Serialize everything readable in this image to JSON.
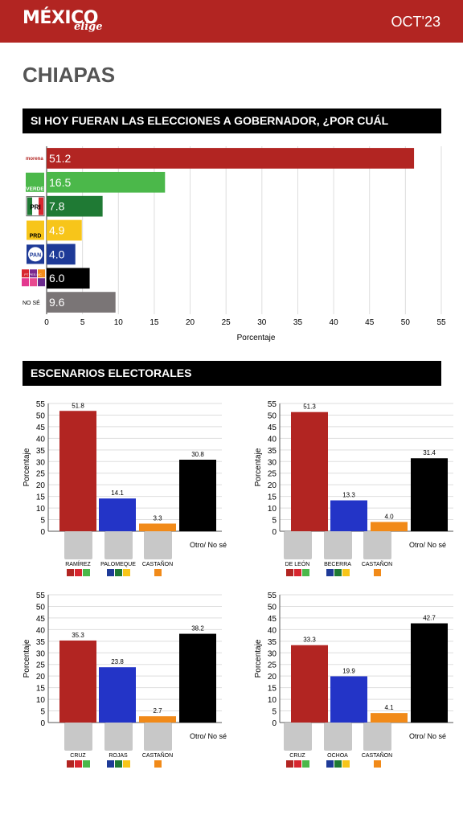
{
  "header": {
    "logo_main": "MÉXICO",
    "logo_sub": "elige",
    "date": "OCT'23"
  },
  "state_title": "CHIAPAS",
  "section1_title": "SI HOY FUERAN LAS ELECCIONES A GOBERNADOR, ¿POR CUÁL VOTARÍA?",
  "section2_title": "ESCENARIOS ELECTORALES",
  "colors": {
    "red": "#b22522",
    "green": "#4bb84a",
    "darkgreen": "#1f7a34",
    "yellow": "#f7c51a",
    "blue": "#1e3a97",
    "black": "#000000",
    "gray": "#7a7576",
    "orange": "#f18a19",
    "scenario_blue": "#2334c7"
  },
  "chart_data": [
    {
      "type": "bar",
      "orientation": "horizontal",
      "categories": [
        "morena",
        "VERDE",
        "PRI",
        "PRD",
        "PAN",
        "PT PES MC",
        "NO SÉ"
      ],
      "category_icons": [
        "morena-logo",
        "pvem-logo",
        "pri-logo",
        "prd-logo",
        "pan-logo",
        "other-parties-logo",
        ""
      ],
      "bar_colors": [
        "#b22522",
        "#4bb84a",
        "#1f7a34",
        "#f7c51a",
        "#1e3a97",
        "#000000",
        "#7a7576"
      ],
      "values": [
        51.2,
        16.5,
        7.8,
        4.9,
        4.0,
        6.0,
        9.6
      ],
      "value_labels": [
        "51.2",
        "16.5",
        "7.8",
        "4.9",
        "4.0",
        "6.0",
        "9.6"
      ],
      "xlabel": "Porcentaje",
      "xlim": [
        0,
        55
      ],
      "xticks": [
        0,
        5,
        10,
        15,
        20,
        25,
        30,
        35,
        40,
        45,
        50,
        55
      ],
      "grid": true
    },
    {
      "type": "bar",
      "categories": [
        "RAMÍREZ",
        "PALOMEQUE",
        "CASTAÑON",
        "Otro/ No sé"
      ],
      "values": [
        51.8,
        14.1,
        3.3,
        30.8
      ],
      "value_labels": [
        "51.8",
        "14.1",
        "3.3",
        "30.8"
      ],
      "bar_colors": [
        "#b22522",
        "#2334c7",
        "#f18a19",
        "#000000"
      ],
      "ylabel": "Porcentaje",
      "ylim": [
        0,
        55
      ],
      "yticks": [
        0,
        5,
        10,
        15,
        20,
        25,
        30,
        35,
        40,
        45,
        50,
        55
      ],
      "grid": true
    },
    {
      "type": "bar",
      "categories": [
        "DE LEÓN",
        "BECERRA",
        "CASTAÑON",
        "Otro/ No sé"
      ],
      "values": [
        51.3,
        13.3,
        4.0,
        31.4
      ],
      "value_labels": [
        "51.3",
        "13.3",
        "4.0",
        "31.4"
      ],
      "bar_colors": [
        "#b22522",
        "#2334c7",
        "#f18a19",
        "#000000"
      ],
      "ylabel": "Porcentaje",
      "ylim": [
        0,
        55
      ],
      "yticks": [
        0,
        5,
        10,
        15,
        20,
        25,
        30,
        35,
        40,
        45,
        50,
        55
      ],
      "grid": true
    },
    {
      "type": "bar",
      "categories": [
        "CRUZ",
        "ROJAS",
        "CASTAÑON",
        "Otro/ No sé"
      ],
      "values": [
        35.3,
        23.8,
        2.7,
        38.2
      ],
      "value_labels": [
        "35.3",
        "23.8",
        "2.7",
        "38.2"
      ],
      "bar_colors": [
        "#b22522",
        "#2334c7",
        "#f18a19",
        "#000000"
      ],
      "ylabel": "Porcentaje",
      "ylim": [
        0,
        55
      ],
      "yticks": [
        0,
        5,
        10,
        15,
        20,
        25,
        30,
        35,
        40,
        45,
        50,
        55
      ],
      "grid": true
    },
    {
      "type": "bar",
      "categories": [
        "CRUZ",
        "OCHOA",
        "CASTAÑON",
        "Otro/ No sé"
      ],
      "values": [
        33.3,
        19.9,
        4.1,
        42.7
      ],
      "value_labels": [
        "33.3",
        "19.9",
        "4.1",
        "42.7"
      ],
      "bar_colors": [
        "#b22522",
        "#2334c7",
        "#f18a19",
        "#000000"
      ],
      "ylabel": "Porcentaje",
      "ylim": [
        0,
        55
      ],
      "yticks": [
        0,
        5,
        10,
        15,
        20,
        25,
        30,
        35,
        40,
        45,
        50,
        55
      ],
      "grid": true
    }
  ],
  "scenario_coalitions": [
    "morena-pt-verde-logos",
    "pan-pri-prd-logos",
    "mc-logo"
  ]
}
